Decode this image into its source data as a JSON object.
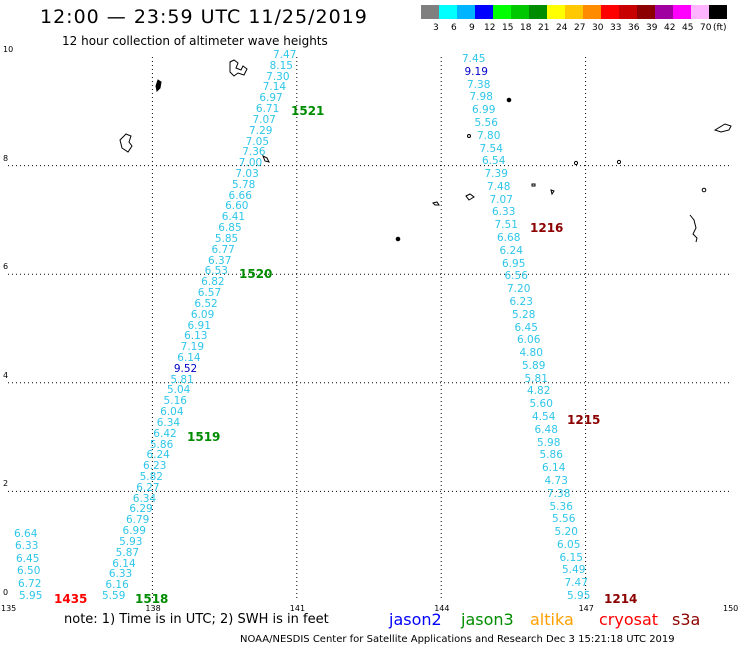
{
  "header": {
    "title": "12:00 — 23:59 UTC 11/25/2019",
    "subtitle": "12 hour collection of altimeter wave heights"
  },
  "legend": {
    "unit": "(ft)",
    "bins": [
      {
        "label": "3",
        "color": "#7f7f7f"
      },
      {
        "label": "6",
        "color": "#00ffff"
      },
      {
        "label": "9",
        "color": "#00b4ff"
      },
      {
        "label": "12",
        "color": "#0000ff"
      },
      {
        "label": "15",
        "color": "#00ff00"
      },
      {
        "label": "18",
        "color": "#00c800"
      },
      {
        "label": "21",
        "color": "#008c00"
      },
      {
        "label": "24",
        "color": "#ffff00"
      },
      {
        "label": "27",
        "color": "#ffc800"
      },
      {
        "label": "30",
        "color": "#ff8c00"
      },
      {
        "label": "33",
        "color": "#ff0000"
      },
      {
        "label": "36",
        "color": "#c80000"
      },
      {
        "label": "39",
        "color": "#8c0000"
      },
      {
        "label": "42",
        "color": "#a000a0"
      },
      {
        "label": "45",
        "color": "#ff00ff"
      },
      {
        "label": "70",
        "color": "#ffb4ff"
      },
      {
        "label": "",
        "color": "#000000"
      }
    ]
  },
  "axes": {
    "x_ticks": [
      "135",
      "138",
      "141",
      "144",
      "147",
      "150"
    ],
    "y_ticks": [
      "0",
      "2",
      "4",
      "6",
      "8",
      "10"
    ]
  },
  "tracks": {
    "left_short": [
      "6.64",
      "6.33",
      "6.45",
      "6.50",
      "6.72",
      "5.95"
    ],
    "west": [
      "7.47",
      "8.15",
      "7.30",
      "7.14",
      "6.97",
      "6.71",
      "7.07",
      "7.29",
      "7.05",
      "7.36",
      "7.00",
      "7.03",
      "5.78",
      "6.66",
      "6.60",
      "6.41",
      "6.85",
      "5.85",
      "6.77",
      "6.37",
      "6.53",
      "6.82",
      "6.57",
      "6.52",
      "6.09",
      "6.91",
      "6.13",
      "7.19",
      "6.14",
      "9.52",
      "5.81",
      "5.04",
      "5.16",
      "6.04",
      "6.34",
      "6.42",
      "5.86",
      "6.24",
      "6.23",
      "5.82",
      "6.27",
      "6.34",
      "6.29",
      "6.79",
      "6.99",
      "5.93",
      "5.87",
      "6.14",
      "6.33",
      "6.16",
      "5.59"
    ],
    "east": [
      "7.45",
      "9.19",
      "7.38",
      "7.98",
      "6.99",
      "5.56",
      "7.80",
      "7.54",
      "6.54",
      "7.39",
      "7.48",
      "7.07",
      "6.33",
      "7.51",
      "6.68",
      "6.24",
      "6.95",
      "6.56",
      "7.20",
      "6.23",
      "5.28",
      "6.45",
      "6.06",
      "4.80",
      "5.89",
      "5.81",
      "4.82",
      "5.60",
      "4.54",
      "6.48",
      "5.98",
      "5.86",
      "6.14",
      "4.73",
      "7.38",
      "5.36",
      "5.56",
      "5.20",
      "6.05",
      "6.15",
      "5.49",
      "7.47",
      "5.95"
    ]
  },
  "pass_labels": [
    {
      "text": "1521",
      "color": "#008c00"
    },
    {
      "text": "1520",
      "color": "#008c00"
    },
    {
      "text": "1519",
      "color": "#008c00"
    },
    {
      "text": "1518",
      "color": "#008c00"
    },
    {
      "text": "1435",
      "color": "#ff0000"
    },
    {
      "text": "1216",
      "color": "#8c0000"
    },
    {
      "text": "1215",
      "color": "#8c0000"
    },
    {
      "text": "1214",
      "color": "#8c0000"
    }
  ],
  "note": "note: 1) Time is in UTC; 2) SWH is in feet",
  "satellites": [
    {
      "name": "jason2",
      "color": "#0000ff"
    },
    {
      "name": "jason3",
      "color": "#008c00"
    },
    {
      "name": "altika",
      "color": "#ffa000"
    },
    {
      "name": "cryosat",
      "color": "#ff0000"
    },
    {
      "name": "s3a",
      "color": "#8c0000"
    }
  ],
  "footer": "NOAA/NESDIS Center for Satellite Applications and Research   Dec  3 15:21:18 UTC 2019"
}
